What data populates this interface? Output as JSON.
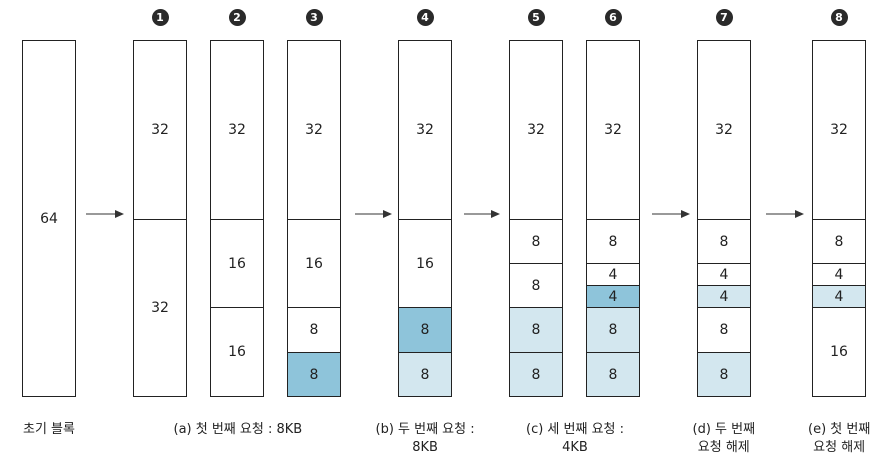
{
  "colors": {
    "white": "#ffffff",
    "light_blue": "#d3e7ef",
    "mid_blue": "#8ec4da",
    "border": "#222222",
    "badge": "#2a2a2a"
  },
  "columns": [
    {
      "id": "initial",
      "badge": "",
      "blocks": [
        {
          "size": 64,
          "label": "64",
          "state": "white"
        }
      ]
    },
    {
      "id": "step1",
      "badge": "1",
      "blocks": [
        {
          "size": 32,
          "label": "32",
          "state": "white"
        },
        {
          "size": 32,
          "label": "32",
          "state": "white"
        }
      ]
    },
    {
      "id": "step2",
      "badge": "2",
      "blocks": [
        {
          "size": 32,
          "label": "32",
          "state": "white"
        },
        {
          "size": 16,
          "label": "16",
          "state": "white"
        },
        {
          "size": 16,
          "label": "16",
          "state": "white"
        }
      ]
    },
    {
      "id": "step3",
      "badge": "3",
      "blocks": [
        {
          "size": 32,
          "label": "32",
          "state": "white"
        },
        {
          "size": 16,
          "label": "16",
          "state": "white"
        },
        {
          "size": 8,
          "label": "8",
          "state": "white"
        },
        {
          "size": 8,
          "label": "8",
          "state": "mid_blue"
        }
      ]
    },
    {
      "id": "step4",
      "badge": "4",
      "blocks": [
        {
          "size": 32,
          "label": "32",
          "state": "white"
        },
        {
          "size": 16,
          "label": "16",
          "state": "white"
        },
        {
          "size": 8,
          "label": "8",
          "state": "mid_blue"
        },
        {
          "size": 8,
          "label": "8",
          "state": "light_blue"
        }
      ]
    },
    {
      "id": "step5",
      "badge": "5",
      "blocks": [
        {
          "size": 32,
          "label": "32",
          "state": "white"
        },
        {
          "size": 8,
          "label": "8",
          "state": "white"
        },
        {
          "size": 8,
          "label": "8",
          "state": "white"
        },
        {
          "size": 8,
          "label": "8",
          "state": "light_blue"
        },
        {
          "size": 8,
          "label": "8",
          "state": "light_blue"
        }
      ]
    },
    {
      "id": "step6",
      "badge": "6",
      "blocks": [
        {
          "size": 32,
          "label": "32",
          "state": "white"
        },
        {
          "size": 8,
          "label": "8",
          "state": "white"
        },
        {
          "size": 4,
          "label": "4",
          "state": "white"
        },
        {
          "size": 4,
          "label": "4",
          "state": "mid_blue"
        },
        {
          "size": 8,
          "label": "8",
          "state": "light_blue"
        },
        {
          "size": 8,
          "label": "8",
          "state": "light_blue"
        }
      ]
    },
    {
      "id": "step7",
      "badge": "7",
      "blocks": [
        {
          "size": 32,
          "label": "32",
          "state": "white"
        },
        {
          "size": 8,
          "label": "8",
          "state": "white"
        },
        {
          "size": 4,
          "label": "4",
          "state": "white"
        },
        {
          "size": 4,
          "label": "4",
          "state": "light_blue"
        },
        {
          "size": 8,
          "label": "8",
          "state": "white"
        },
        {
          "size": 8,
          "label": "8",
          "state": "light_blue"
        }
      ]
    },
    {
      "id": "step8",
      "badge": "8",
      "blocks": [
        {
          "size": 32,
          "label": "32",
          "state": "white"
        },
        {
          "size": 8,
          "label": "8",
          "state": "white"
        },
        {
          "size": 4,
          "label": "4",
          "state": "white"
        },
        {
          "size": 4,
          "label": "4",
          "state": "light_blue"
        },
        {
          "size": 16,
          "label": "16",
          "state": "white"
        }
      ]
    }
  ],
  "captions": {
    "initial": [
      "초기 블록"
    ],
    "a": [
      "(a) 첫 번째 요청 : 8KB"
    ],
    "b": [
      "(b) 두 번째 요청 :",
      "8KB"
    ],
    "c": [
      "(c) 세 번째 요청 :",
      "4KB"
    ],
    "d": [
      "(d) 두 번째",
      "요청 해제"
    ],
    "e": [
      "(e) 첫 번째",
      "요청 해제"
    ]
  }
}
